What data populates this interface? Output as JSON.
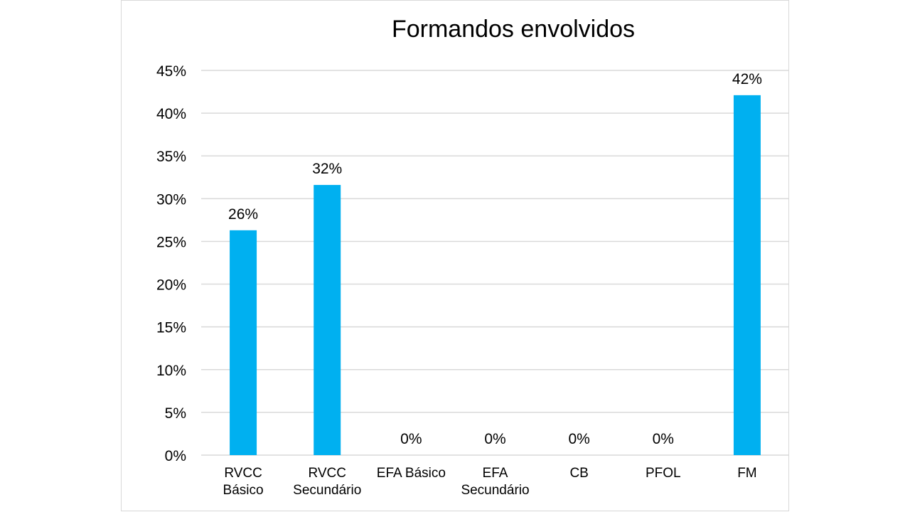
{
  "chart_data": {
    "type": "bar",
    "title": "Formandos envolvidos",
    "xlabel": "",
    "ylabel": "",
    "categories": [
      [
        "RVCC",
        "Básico"
      ],
      [
        "RVCC",
        "Secundário"
      ],
      [
        "EFA Básico"
      ],
      [
        "EFA",
        "Secundário"
      ],
      [
        "CB"
      ],
      [
        "PFOL"
      ],
      [
        "FM"
      ]
    ],
    "values": [
      26.3,
      31.6,
      0,
      0,
      0,
      0,
      42.1
    ],
    "data_labels": [
      "26%",
      "32%",
      "0%",
      "0%",
      "0%",
      "0%",
      "42%"
    ],
    "ylim": [
      0,
      45
    ],
    "y_ticks": [
      0,
      5,
      10,
      15,
      20,
      25,
      30,
      35,
      40,
      45
    ],
    "y_tick_labels": [
      "0%",
      "5%",
      "10%",
      "15%",
      "20%",
      "25%",
      "30%",
      "35%",
      "40%",
      "45%"
    ],
    "grid": true,
    "legend": "none",
    "bar_color": "#00b0f0",
    "gridline_color": "#d9d9d9"
  }
}
